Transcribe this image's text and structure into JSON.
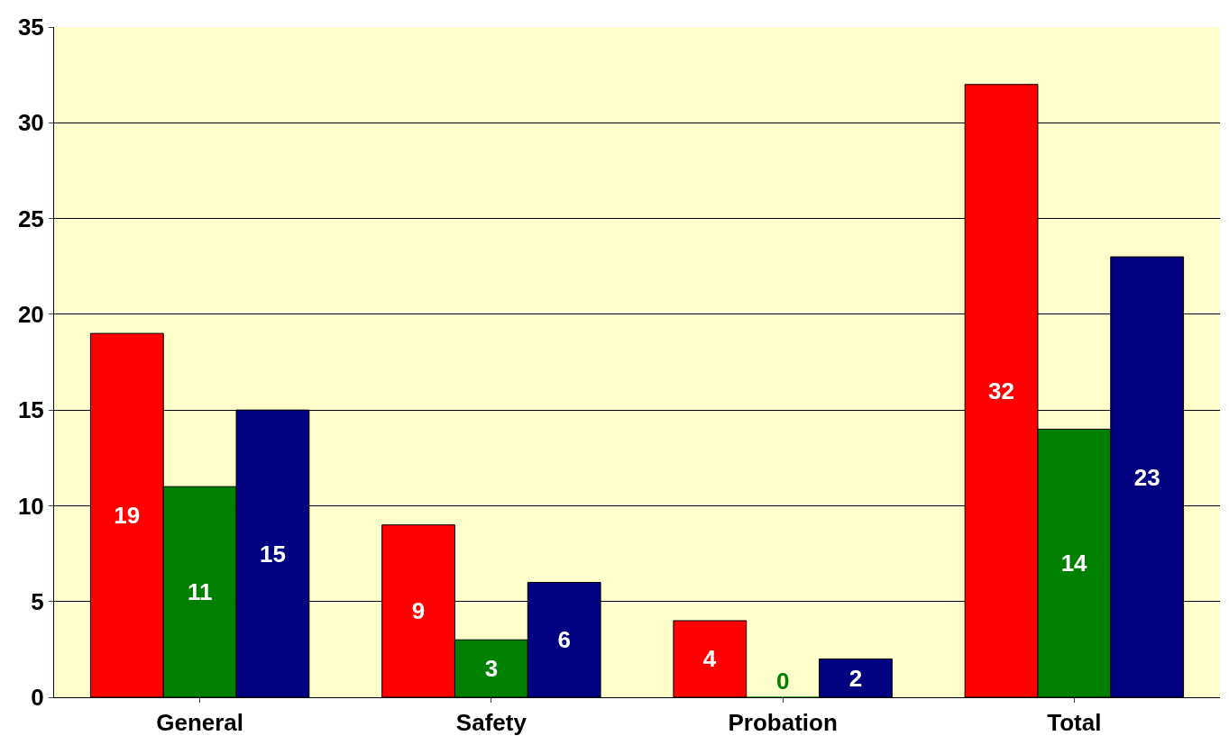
{
  "chart_data": {
    "type": "bar",
    "categories": [
      "General",
      "Safety",
      "Probation",
      "Total"
    ],
    "series": [
      {
        "color": "#ff0000",
        "values": [
          19,
          9,
          4,
          32
        ]
      },
      {
        "color": "#008000",
        "values": [
          11,
          3,
          0,
          14
        ]
      },
      {
        "color": "#000080",
        "values": [
          15,
          6,
          2,
          23
        ]
      }
    ],
    "ylim": [
      0,
      35
    ],
    "yticks": [
      0,
      5,
      10,
      15,
      20,
      25,
      30,
      35
    ],
    "grid": "y",
    "data_labels": true,
    "legend": false
  }
}
